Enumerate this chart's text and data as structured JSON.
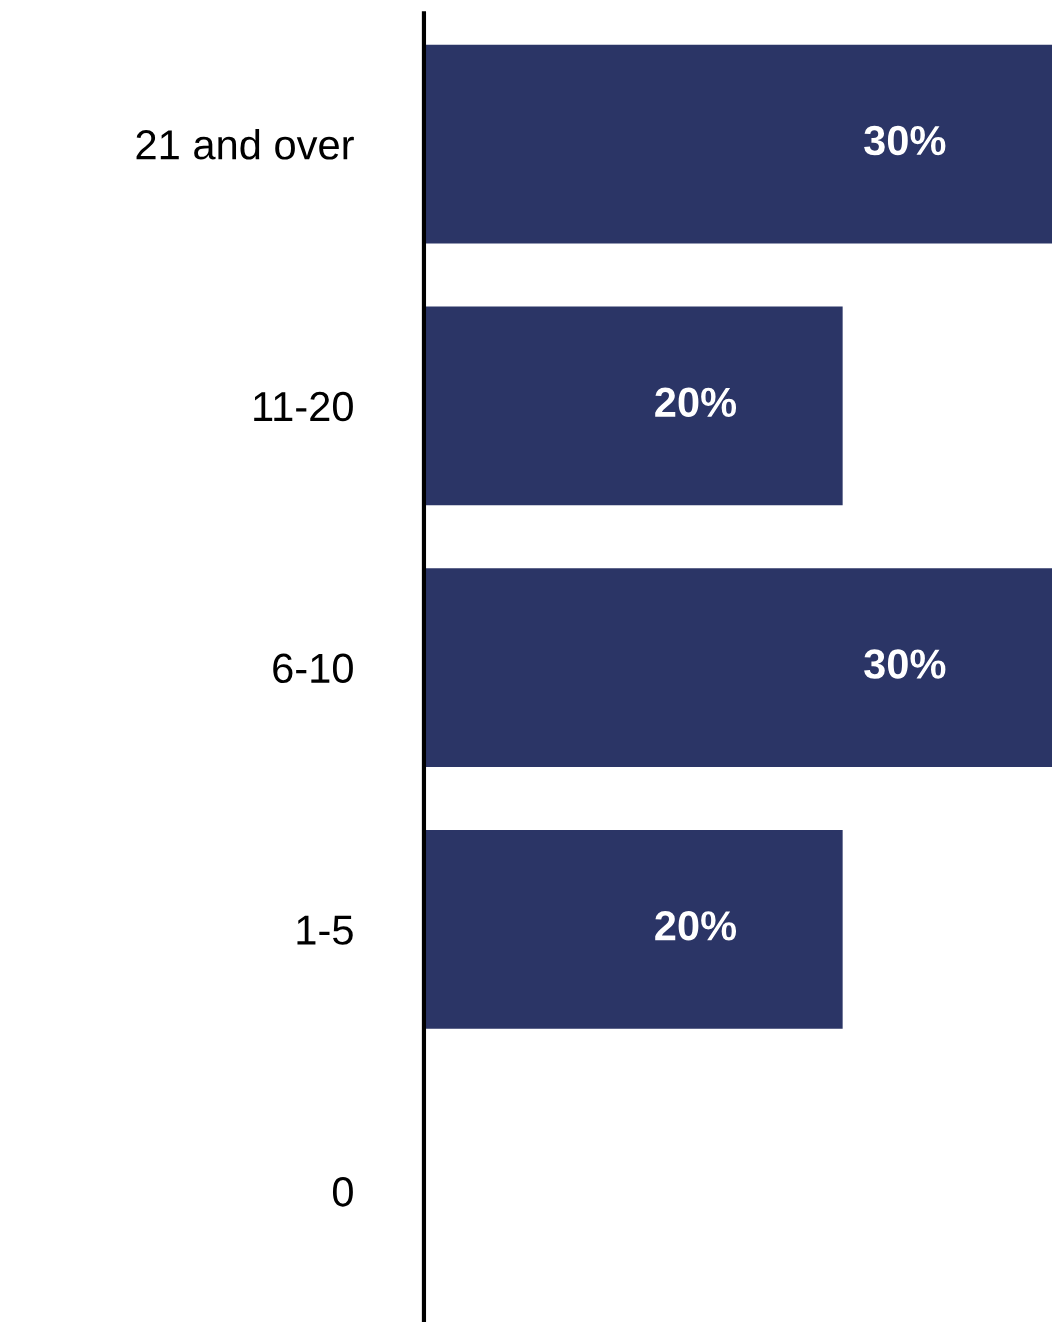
{
  "chart_data": {
    "type": "bar",
    "orientation": "horizontal",
    "categories": [
      "21 and over",
      "11-20",
      "6-10",
      "1-5",
      "0"
    ],
    "values": [
      30,
      20,
      30,
      20,
      0
    ],
    "value_labels": [
      "30%",
      "20%",
      "30%",
      "20%",
      null
    ],
    "color": "#2b3566",
    "xlim": [
      0,
      30
    ],
    "tick_labels": "y",
    "grid": false,
    "legend": false
  }
}
